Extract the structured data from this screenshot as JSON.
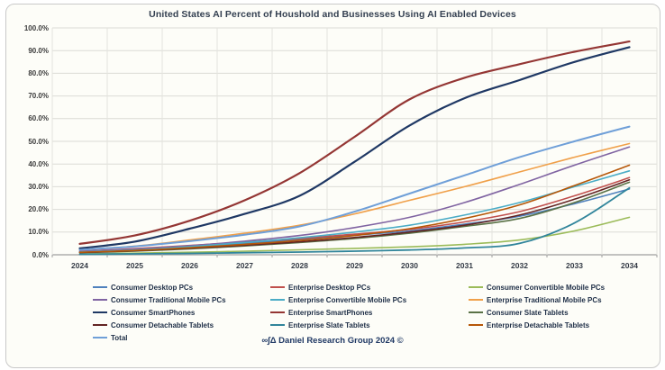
{
  "title": "United States AI Percent of Houshold and Businesses Using AI Enabled Devices",
  "footer": "∞∫Δ Daniel Research Group 2024 ©",
  "chart_data": {
    "type": "line",
    "title": "United States AI Percent of Houshold and Businesses Using AI Enabled Devices",
    "xlabel": "",
    "ylabel": "",
    "x": [
      "2024",
      "2025",
      "2026",
      "2027",
      "2028",
      "2029",
      "2030",
      "2031",
      "2032",
      "2033",
      "2034"
    ],
    "ylim": [
      0,
      100
    ],
    "y_tick_labels": [
      "100.0%",
      "90.0%",
      "80.0%",
      "70.0%",
      "60.0%",
      "50.0%",
      "40.0%",
      "30.0%",
      "20.0%",
      "10.0%",
      "0.0%"
    ],
    "grid": true,
    "legend_position": "bottom",
    "series": [
      {
        "name": "Consumer Desktop PCs",
        "color": "#4f81bd",
        "width": 1.6,
        "values": [
          1.3,
          2.2,
          3.5,
          5.0,
          6.8,
          8.6,
          10.5,
          13.5,
          17.0,
          22.5,
          29.0
        ]
      },
      {
        "name": "Enterprise Desktop PCs",
        "color": "#c0504d",
        "width": 1.6,
        "values": [
          1.6,
          2.7,
          4.1,
          5.6,
          7.2,
          9.1,
          11.2,
          14.5,
          19.0,
          26.0,
          34.0
        ]
      },
      {
        "name": "Consumer Convertible Mobile PCs",
        "color": "#9bbb59",
        "width": 1.6,
        "values": [
          0.4,
          0.7,
          1.1,
          1.6,
          2.2,
          2.8,
          3.5,
          4.6,
          6.5,
          10.5,
          16.5
        ]
      },
      {
        "name": "Consumer Traditional Mobile PCs",
        "color": "#8064a2",
        "width": 1.6,
        "values": [
          1.5,
          2.5,
          4.0,
          6.0,
          8.5,
          12.0,
          16.5,
          23.0,
          31.0,
          39.5,
          47.5
        ]
      },
      {
        "name": "Enterprise Convertible Mobile PCs",
        "color": "#4bacc6",
        "width": 1.6,
        "values": [
          1.2,
          2.1,
          3.6,
          5.4,
          7.5,
          10.0,
          13.0,
          17.5,
          23.0,
          30.0,
          37.0
        ]
      },
      {
        "name": "Enterprise Traditional Mobile PCs",
        "color": "#f0a04a",
        "width": 1.6,
        "values": [
          2.1,
          3.8,
          6.5,
          9.5,
          13.0,
          18.0,
          24.0,
          30.0,
          36.5,
          43.0,
          49.0
        ]
      },
      {
        "name": "Consumer SmartPhones",
        "color": "#1f3864",
        "width": 2.2,
        "values": [
          2.8,
          5.8,
          11.5,
          18.0,
          26.0,
          41.0,
          57.0,
          69.0,
          77.0,
          85.0,
          91.5
        ]
      },
      {
        "name": "Enterprise SmartPhones",
        "color": "#943634",
        "width": 2.2,
        "values": [
          4.8,
          8.5,
          15.0,
          24.0,
          36.0,
          52.0,
          68.5,
          78.0,
          84.0,
          89.5,
          94.0
        ]
      },
      {
        "name": "Consumer Slate Tablets",
        "color": "#5a7247",
        "width": 1.6,
        "values": [
          0.9,
          1.6,
          2.6,
          3.9,
          5.4,
          7.2,
          9.5,
          12.5,
          16.0,
          23.0,
          32.0
        ]
      },
      {
        "name": "Consumer Detachable Tablets",
        "color": "#632423",
        "width": 1.6,
        "values": [
          1.0,
          1.8,
          2.9,
          4.2,
          5.7,
          7.6,
          10.0,
          13.0,
          17.5,
          24.5,
          33.0
        ]
      },
      {
        "name": "Enterprise Slate Tablets",
        "color": "#31859b",
        "width": 1.8,
        "values": [
          0.2,
          0.4,
          0.6,
          0.9,
          1.2,
          1.6,
          2.1,
          3.0,
          5.0,
          14.0,
          29.5
        ]
      },
      {
        "name": "Enterprise Detachable Tablets",
        "color": "#b65708",
        "width": 1.6,
        "values": [
          1.1,
          1.9,
          3.1,
          4.6,
          6.3,
          8.5,
          11.5,
          16.0,
          22.0,
          30.5,
          39.5
        ]
      },
      {
        "name": "Total",
        "color": "#6f9fd8",
        "width": 2.0,
        "values": [
          2.2,
          3.7,
          6.0,
          8.8,
          12.5,
          19.0,
          27.0,
          35.0,
          43.0,
          50.0,
          56.5
        ]
      }
    ]
  }
}
